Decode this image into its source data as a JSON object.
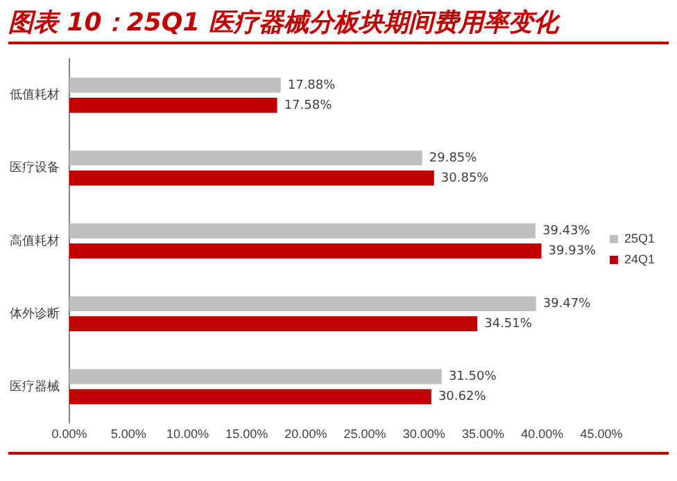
{
  "chart_data": {
    "type": "bar",
    "orientation": "horizontal",
    "title": "图表 10：25Q1 医疗器械分板块期间费用率变化",
    "categories": [
      "低值耗材",
      "医疗设备",
      "高值耗材",
      "体外诊断",
      "医疗器械"
    ],
    "series": [
      {
        "name": "25Q1",
        "color": "#bfbfbf",
        "values": [
          17.88,
          29.85,
          39.43,
          39.47,
          31.5
        ],
        "value_labels": [
          "17.88%",
          "29.85%",
          "39.43%",
          "39.47%",
          "31.50%"
        ]
      },
      {
        "name": "24Q1",
        "color": "#c00000",
        "values": [
          17.58,
          30.85,
          39.93,
          34.51,
          30.62
        ],
        "value_labels": [
          "17.58%",
          "30.85%",
          "39.93%",
          "34.51%",
          "30.62%"
        ]
      }
    ],
    "xlim": [
      0,
      45
    ],
    "xticks": [
      {
        "value": 0,
        "label": "0.00%"
      },
      {
        "value": 5,
        "label": "5.00%"
      },
      {
        "value": 10,
        "label": "10.00%"
      },
      {
        "value": 15,
        "label": "15.00%"
      },
      {
        "value": 20,
        "label": "20.00%"
      },
      {
        "value": 25,
        "label": "25.00%"
      },
      {
        "value": 30,
        "label": "30.00%"
      },
      {
        "value": 35,
        "label": "35.00%"
      },
      {
        "value": 40,
        "label": "40.00%"
      },
      {
        "value": 45,
        "label": "45.00%"
      }
    ],
    "grid": false,
    "legend": "right"
  }
}
